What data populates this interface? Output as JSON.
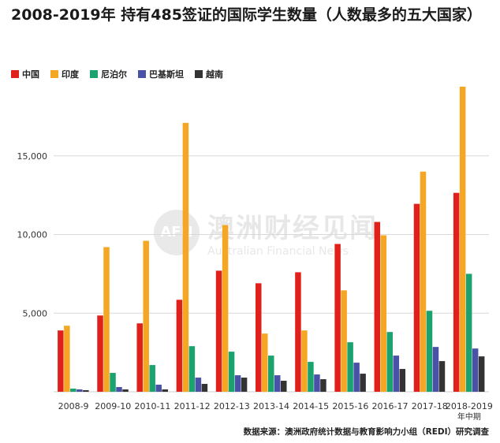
{
  "title": "2008-2019年 持有485签证的国际学生数量（人数最多的五大国家）",
  "source": "数据来源：澳洲政府统计数据与教育影响力小组（REDI）研究调查",
  "watermark": {
    "logo": "AFN",
    "main": "澳洲财经见闻",
    "sub": "Australian Financial News"
  },
  "chart_data": {
    "type": "bar",
    "title": "2008-2019年 持有485签证的国际学生数量（人数最多的五大国家）",
    "xlabel": "",
    "ylabel": "",
    "categories": [
      "2008-9",
      "2009-10",
      "2010-11",
      "2011-12",
      "2012-13",
      "2013-14",
      "2014-15",
      "2015-16",
      "2016-17",
      "2017-18",
      "2018-2019\n年中期"
    ],
    "category_labels": [
      [
        "2008-9"
      ],
      [
        "2009-10"
      ],
      [
        "2010-11"
      ],
      [
        "2011-12"
      ],
      [
        "2012-13"
      ],
      [
        "2013-14"
      ],
      [
        "2014-15"
      ],
      [
        "2015-16"
      ],
      [
        "2016-17"
      ],
      [
        "2017-18"
      ],
      [
        "2018-2019",
        "年中期"
      ]
    ],
    "yticks": [
      5000,
      10000,
      15000
    ],
    "ytick_labels": [
      "5,000",
      "10,000",
      "15,000"
    ],
    "ylim": [
      0,
      19500
    ],
    "grid": true,
    "legend_position": "top-left",
    "series": [
      {
        "name": "中国",
        "color": "#e0201b",
        "values": [
          3900,
          4850,
          4350,
          5850,
          7700,
          6900,
          7600,
          9400,
          10800,
          11950,
          12650
        ]
      },
      {
        "name": "印度",
        "color": "#f5a623",
        "values": [
          4200,
          9200,
          9600,
          17100,
          10600,
          3700,
          3900,
          6450,
          9950,
          14000,
          19400
        ]
      },
      {
        "name": "尼泊尔",
        "color": "#1aa36f",
        "values": [
          200,
          1200,
          1700,
          2900,
          2550,
          2300,
          1900,
          3150,
          3800,
          5150,
          7500
        ]
      },
      {
        "name": "巴基斯坦",
        "color": "#4a52a8",
        "values": [
          150,
          300,
          450,
          900,
          1050,
          1050,
          1100,
          1850,
          2300,
          2850,
          2750
        ]
      },
      {
        "name": "越南",
        "color": "#333333",
        "values": [
          100,
          150,
          150,
          500,
          900,
          700,
          800,
          1150,
          1450,
          1950,
          2250
        ]
      }
    ]
  }
}
